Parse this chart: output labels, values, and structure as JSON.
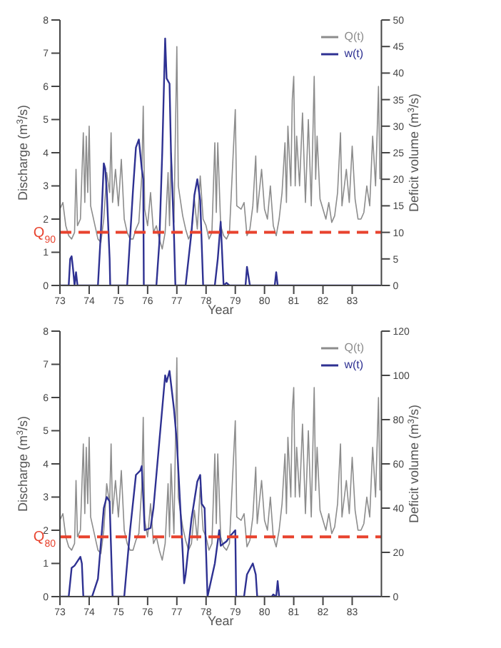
{
  "chart_data": [
    {
      "type": "line",
      "xlabel": "Year",
      "ylabel": "Discharge (m$^{3}$/s)",
      "y2label": "Deficit volume (m$^{3}$/s)",
      "xlim": [
        73,
        84
      ],
      "xticks": [
        73,
        74,
        75,
        76,
        77,
        78,
        79,
        80,
        81,
        82,
        83
      ],
      "ylim": [
        0,
        8
      ],
      "yticks": [
        0,
        1,
        2,
        3,
        4,
        5,
        6,
        7,
        8
      ],
      "y2lim": [
        0,
        50
      ],
      "y2ticks": [
        0,
        5,
        10,
        15,
        20,
        25,
        30,
        35,
        40,
        45,
        50
      ],
      "legend": "top right",
      "grid": false,
      "marker": "none",
      "line_style": "solid",
      "series": [
        {
          "name": "Q(t)",
          "color": "#8c8c8c",
          "x": [
            73.0,
            73.1,
            73.2,
            73.3,
            73.4,
            73.5,
            73.55,
            73.6,
            73.7,
            73.8,
            73.85,
            73.9,
            73.95,
            74.0,
            74.05,
            74.2,
            74.3,
            74.4,
            74.5,
            74.6,
            74.7,
            74.75,
            74.8,
            74.9,
            75.0,
            75.1,
            75.2,
            75.3,
            75.4,
            75.5,
            75.6,
            75.7,
            75.8,
            75.85,
            75.9,
            76.0,
            76.1,
            76.2,
            76.3,
            76.4,
            76.5,
            76.6,
            76.7,
            76.75,
            76.8,
            76.9,
            77.0,
            77.05,
            77.2,
            77.3,
            77.4,
            77.5,
            77.6,
            77.7,
            77.8,
            77.9,
            78.0,
            78.1,
            78.2,
            78.3,
            78.35,
            78.4,
            78.5,
            78.6,
            78.7,
            78.8,
            79.0,
            79.05,
            79.2,
            79.3,
            79.4,
            79.5,
            79.6,
            79.7,
            79.75,
            79.9,
            80.0,
            80.1,
            80.2,
            80.3,
            80.4,
            80.5,
            80.6,
            80.7,
            80.75,
            80.8,
            80.9,
            80.95,
            81.0,
            81.05,
            81.1,
            81.2,
            81.3,
            81.4,
            81.5,
            81.6,
            81.7,
            81.75,
            81.8,
            81.9,
            82.0,
            82.1,
            82.2,
            82.3,
            82.4,
            82.5,
            82.6,
            82.65,
            82.8,
            82.9,
            83.0,
            83.1,
            83.2,
            83.3,
            83.4,
            83.5,
            83.6,
            83.7,
            83.8,
            83.9,
            83.95
          ],
          "values": [
            2.3,
            2.5,
            1.8,
            1.5,
            1.4,
            1.6,
            3.5,
            1.8,
            2.0,
            4.6,
            2.5,
            4.5,
            2.8,
            4.8,
            2.4,
            1.8,
            1.4,
            1.3,
            2.0,
            3.4,
            2.8,
            4.6,
            2.5,
            3.5,
            2.4,
            3.8,
            2.0,
            1.6,
            1.4,
            1.4,
            1.7,
            1.9,
            3.3,
            5.4,
            2.3,
            1.8,
            2.8,
            1.6,
            1.8,
            1.4,
            1.1,
            1.6,
            3.4,
            1.8,
            4.0,
            1.9,
            7.2,
            3.0,
            2.1,
            1.7,
            1.4,
            1.6,
            2.6,
            1.7,
            3.3,
            2.0,
            1.8,
            1.4,
            1.6,
            4.3,
            2.2,
            4.3,
            1.8,
            1.5,
            1.4,
            1.6,
            5.3,
            2.4,
            2.3,
            2.5,
            1.5,
            1.7,
            2.4,
            3.9,
            2.2,
            3.5,
            2.3,
            2.0,
            3.0,
            1.8,
            1.5,
            2.0,
            2.8,
            4.3,
            2.5,
            4.8,
            3.0,
            5.6,
            6.3,
            3.0,
            4.5,
            3.0,
            5.2,
            2.5,
            5.0,
            2.4,
            6.3,
            3.2,
            4.5,
            2.6,
            2.3,
            2.0,
            2.5,
            1.9,
            2.1,
            2.8,
            4.6,
            2.4,
            3.5,
            2.5,
            4.2,
            2.6,
            2.0,
            2.0,
            2.2,
            3.0,
            2.4,
            4.5,
            3.0,
            6.0,
            3.2
          ]
        },
        {
          "name": "w(t)",
          "color": "#2e3192",
          "axis": "y2",
          "x": [
            73.0,
            73.3,
            73.35,
            73.4,
            73.45,
            73.5,
            73.55,
            73.6,
            74.3,
            74.4,
            74.5,
            74.55,
            74.6,
            74.7,
            74.72,
            75.3,
            75.5,
            75.6,
            75.7,
            75.8,
            75.85,
            75.87,
            76.3,
            76.4,
            76.5,
            76.6,
            76.65,
            76.75,
            76.8,
            76.9,
            76.95,
            77.3,
            77.5,
            77.6,
            77.7,
            77.8,
            77.9,
            78.3,
            78.4,
            78.5,
            78.6,
            78.7,
            78.8,
            79.35,
            79.4,
            79.5,
            80.35,
            80.4,
            80.45,
            83.95
          ],
          "values": [
            0,
            0,
            5,
            5.5,
            3,
            0,
            2.5,
            0,
            0,
            10,
            23,
            22,
            18,
            5,
            0,
            0,
            18,
            26,
            27.5,
            22,
            20,
            0,
            0,
            8,
            25,
            46.5,
            39,
            38,
            25,
            10,
            0,
            0,
            10,
            17,
            20,
            16,
            0,
            0,
            5,
            12,
            0,
            0.5,
            0,
            0,
            3.5,
            0,
            0,
            2.5,
            0,
            0
          ]
        }
      ],
      "ref_lines": [
        {
          "axis": "y",
          "value": 1.6,
          "label": "Q$_{90}$",
          "color": "#e8432e",
          "line_style": "dashed"
        }
      ]
    },
    {
      "type": "line",
      "xlabel": "Year",
      "ylabel": "Discharge (m$^{3}$/s)",
      "y2label": "Deficit volume (m$^{3}$/s)",
      "xlim": [
        73,
        84
      ],
      "xticks": [
        73,
        74,
        75,
        76,
        77,
        78,
        79,
        80,
        81,
        82,
        83
      ],
      "ylim": [
        0,
        8
      ],
      "yticks": [
        0,
        1,
        2,
        3,
        4,
        5,
        6,
        7,
        8
      ],
      "y2lim": [
        0,
        120
      ],
      "y2ticks": [
        0,
        20,
        40,
        60,
        80,
        100,
        120
      ],
      "legend": "top right",
      "grid": false,
      "marker": "none",
      "line_style": "solid",
      "series": [
        {
          "name": "Q(t)",
          "color": "#8c8c8c",
          "x": [
            73.0,
            73.1,
            73.2,
            73.3,
            73.4,
            73.5,
            73.55,
            73.6,
            73.7,
            73.8,
            73.85,
            73.9,
            73.95,
            74.0,
            74.05,
            74.2,
            74.3,
            74.4,
            74.5,
            74.6,
            74.7,
            74.75,
            74.8,
            74.9,
            75.0,
            75.1,
            75.2,
            75.3,
            75.4,
            75.5,
            75.6,
            75.7,
            75.8,
            75.85,
            75.9,
            76.0,
            76.1,
            76.2,
            76.3,
            76.4,
            76.5,
            76.6,
            76.7,
            76.75,
            76.8,
            76.9,
            77.0,
            77.05,
            77.2,
            77.3,
            77.4,
            77.5,
            77.6,
            77.7,
            77.8,
            77.9,
            78.0,
            78.1,
            78.2,
            78.3,
            78.35,
            78.4,
            78.5,
            78.6,
            78.7,
            78.8,
            79.0,
            79.05,
            79.2,
            79.3,
            79.4,
            79.5,
            79.6,
            79.7,
            79.75,
            79.9,
            80.0,
            80.1,
            80.2,
            80.3,
            80.4,
            80.5,
            80.6,
            80.7,
            80.75,
            80.8,
            80.9,
            80.95,
            81.0,
            81.05,
            81.1,
            81.2,
            81.3,
            81.4,
            81.5,
            81.6,
            81.7,
            81.75,
            81.8,
            81.9,
            82.0,
            82.1,
            82.2,
            82.3,
            82.4,
            82.5,
            82.6,
            82.65,
            82.8,
            82.9,
            83.0,
            83.1,
            83.2,
            83.3,
            83.4,
            83.5,
            83.6,
            83.7,
            83.8,
            83.9,
            83.95
          ],
          "values": [
            2.3,
            2.5,
            1.8,
            1.5,
            1.4,
            1.6,
            3.5,
            1.8,
            2.0,
            4.6,
            2.5,
            4.5,
            2.8,
            4.8,
            2.4,
            1.8,
            1.4,
            1.3,
            2.0,
            3.4,
            2.8,
            4.6,
            2.5,
            3.5,
            2.4,
            3.8,
            2.0,
            1.6,
            1.4,
            1.4,
            1.7,
            1.9,
            3.3,
            5.4,
            2.3,
            1.8,
            2.8,
            1.6,
            1.8,
            1.4,
            1.1,
            1.6,
            3.4,
            1.8,
            4.0,
            1.9,
            7.2,
            3.0,
            2.1,
            1.7,
            1.4,
            1.6,
            2.6,
            1.7,
            3.3,
            2.0,
            1.8,
            1.4,
            1.6,
            4.3,
            2.2,
            4.3,
            1.8,
            1.5,
            1.4,
            1.6,
            5.3,
            2.4,
            2.3,
            2.5,
            1.5,
            1.7,
            2.4,
            3.9,
            2.2,
            3.5,
            2.3,
            2.0,
            3.0,
            1.8,
            1.5,
            2.0,
            2.8,
            4.3,
            2.5,
            4.8,
            3.0,
            5.6,
            6.3,
            3.0,
            4.5,
            3.0,
            5.2,
            2.5,
            5.0,
            2.4,
            6.3,
            3.2,
            4.5,
            2.6,
            2.3,
            2.0,
            2.5,
            1.9,
            2.1,
            2.8,
            4.6,
            2.4,
            3.5,
            2.5,
            4.2,
            2.6,
            2.0,
            2.0,
            2.2,
            3.0,
            2.4,
            4.5,
            3.0,
            6.0,
            3.2
          ]
        },
        {
          "name": "w(t)",
          "color": "#2e3192",
          "axis": "y2",
          "x": [
            73.0,
            73.3,
            73.4,
            73.5,
            73.6,
            73.7,
            73.75,
            73.8,
            74.1,
            74.3,
            74.5,
            74.6,
            74.7,
            74.8,
            75.2,
            75.4,
            75.6,
            75.75,
            75.8,
            75.85,
            75.9,
            76.1,
            76.2,
            76.4,
            76.6,
            76.65,
            76.75,
            76.9,
            77.0,
            77.2,
            77.25,
            77.3,
            77.5,
            77.7,
            77.8,
            77.85,
            77.95,
            78.05,
            78.3,
            78.45,
            78.5,
            78.7,
            78.8,
            79.0,
            79.03,
            79.3,
            79.4,
            79.6,
            79.7,
            79.75,
            80.25,
            80.3,
            80.4,
            80.45,
            80.5,
            83.95
          ],
          "values": [
            0,
            0,
            13,
            14,
            16,
            18,
            15,
            0,
            0,
            8,
            40,
            45,
            43,
            0,
            0,
            30,
            55,
            57,
            59,
            45,
            30,
            31,
            40,
            70,
            100,
            97,
            102,
            85,
            70,
            20,
            6,
            10,
            35,
            52,
            55,
            42,
            40,
            0,
            15,
            30,
            23,
            25,
            27,
            30,
            0,
            0,
            10,
            15,
            10,
            0,
            0,
            1,
            0,
            7,
            0,
            0
          ]
        }
      ],
      "ref_lines": [
        {
          "axis": "y",
          "value": 1.8,
          "label": "Q$_{80}$",
          "color": "#e8432e",
          "line_style": "dashed"
        }
      ]
    }
  ]
}
